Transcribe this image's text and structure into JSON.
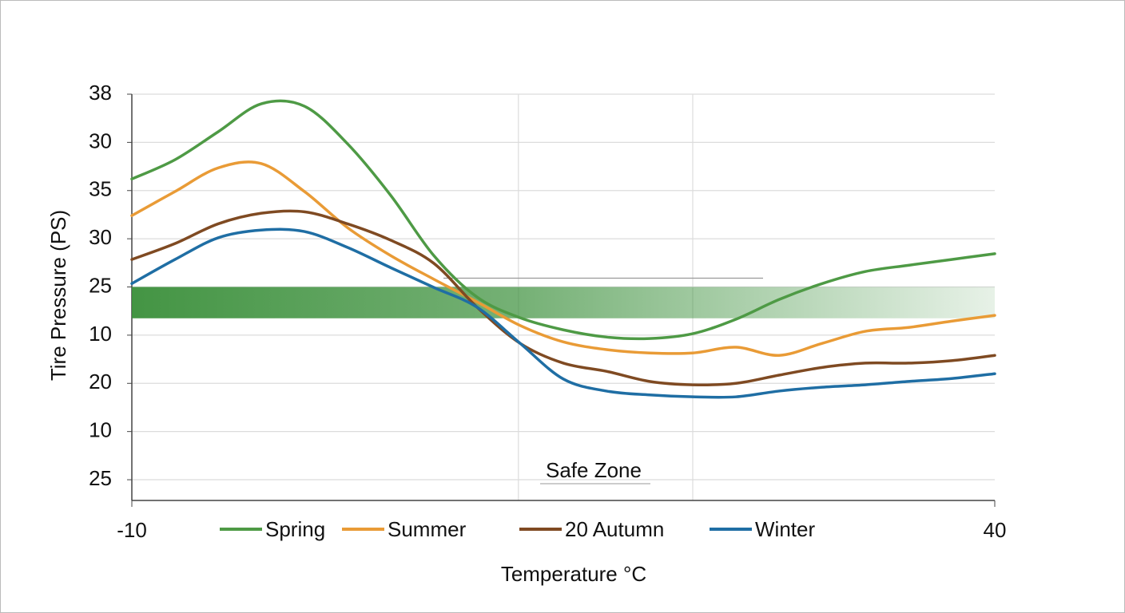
{
  "chart_data": {
    "type": "line",
    "ylabel": "Tire Pressure (PS)",
    "xlabel": "Temperature °C",
    "x": [
      -10,
      -7.5,
      -5,
      -2.5,
      0,
      2.5,
      5,
      7.5,
      10,
      12.5,
      15,
      17.5,
      20,
      22.5,
      25,
      27.5,
      30,
      32.5,
      35,
      37.5,
      40
    ],
    "series": [
      {
        "name": "Spring",
        "color": "#4e9a45",
        "values": [
          6.24,
          6.64,
          7.22,
          7.8,
          7.75,
          6.97,
          5.9,
          4.65,
          3.79,
          3.36,
          3.11,
          2.96,
          2.93,
          3.03,
          3.33,
          3.74,
          4.07,
          4.32,
          4.45,
          4.57,
          4.69
        ]
      },
      {
        "name": "Summer",
        "color": "#e99b36",
        "values": [
          5.48,
          5.98,
          6.47,
          6.56,
          5.98,
          5.23,
          4.65,
          4.16,
          3.69,
          3.2,
          2.86,
          2.7,
          2.63,
          2.63,
          2.75,
          2.58,
          2.83,
          3.08,
          3.16,
          3.29,
          3.41
        ]
      },
      {
        "name": "20 Autumn",
        "color": "#7f4a22",
        "values": [
          4.57,
          4.9,
          5.31,
          5.53,
          5.56,
          5.31,
          4.97,
          4.49,
          3.58,
          2.83,
          2.42,
          2.25,
          2.04,
          1.97,
          2.0,
          2.17,
          2.33,
          2.42,
          2.42,
          2.47,
          2.58
        ]
      },
      {
        "name": "Winter",
        "color": "#1f6ea4",
        "values": [
          4.07,
          4.57,
          5.02,
          5.18,
          5.15,
          4.82,
          4.4,
          3.99,
          3.58,
          2.83,
          2.09,
          1.84,
          1.76,
          1.72,
          1.72,
          1.84,
          1.92,
          1.97,
          2.04,
          2.1,
          2.2
        ]
      }
    ],
    "xlim": [
      -10,
      40
    ],
    "xticks": [
      -10,
      40
    ],
    "xgrid": [
      12.4,
      22.5
    ],
    "ylim": [
      -0.43,
      8
    ],
    "yticks": [
      {
        "value": 8,
        "label": "38"
      },
      {
        "value": 7,
        "label": "30"
      },
      {
        "value": 6,
        "label": "35"
      },
      {
        "value": 5,
        "label": "30"
      },
      {
        "value": 4,
        "label": "25"
      },
      {
        "value": 3,
        "label": "10"
      },
      {
        "value": 2,
        "label": "20"
      },
      {
        "value": 1,
        "label": "10"
      },
      {
        "value": 0,
        "label": "25"
      }
    ],
    "grid": true,
    "safe_zone": {
      "label": "Safe Zone",
      "range": [
        3.35,
        4
      ],
      "color": "#3a8f3a"
    }
  }
}
